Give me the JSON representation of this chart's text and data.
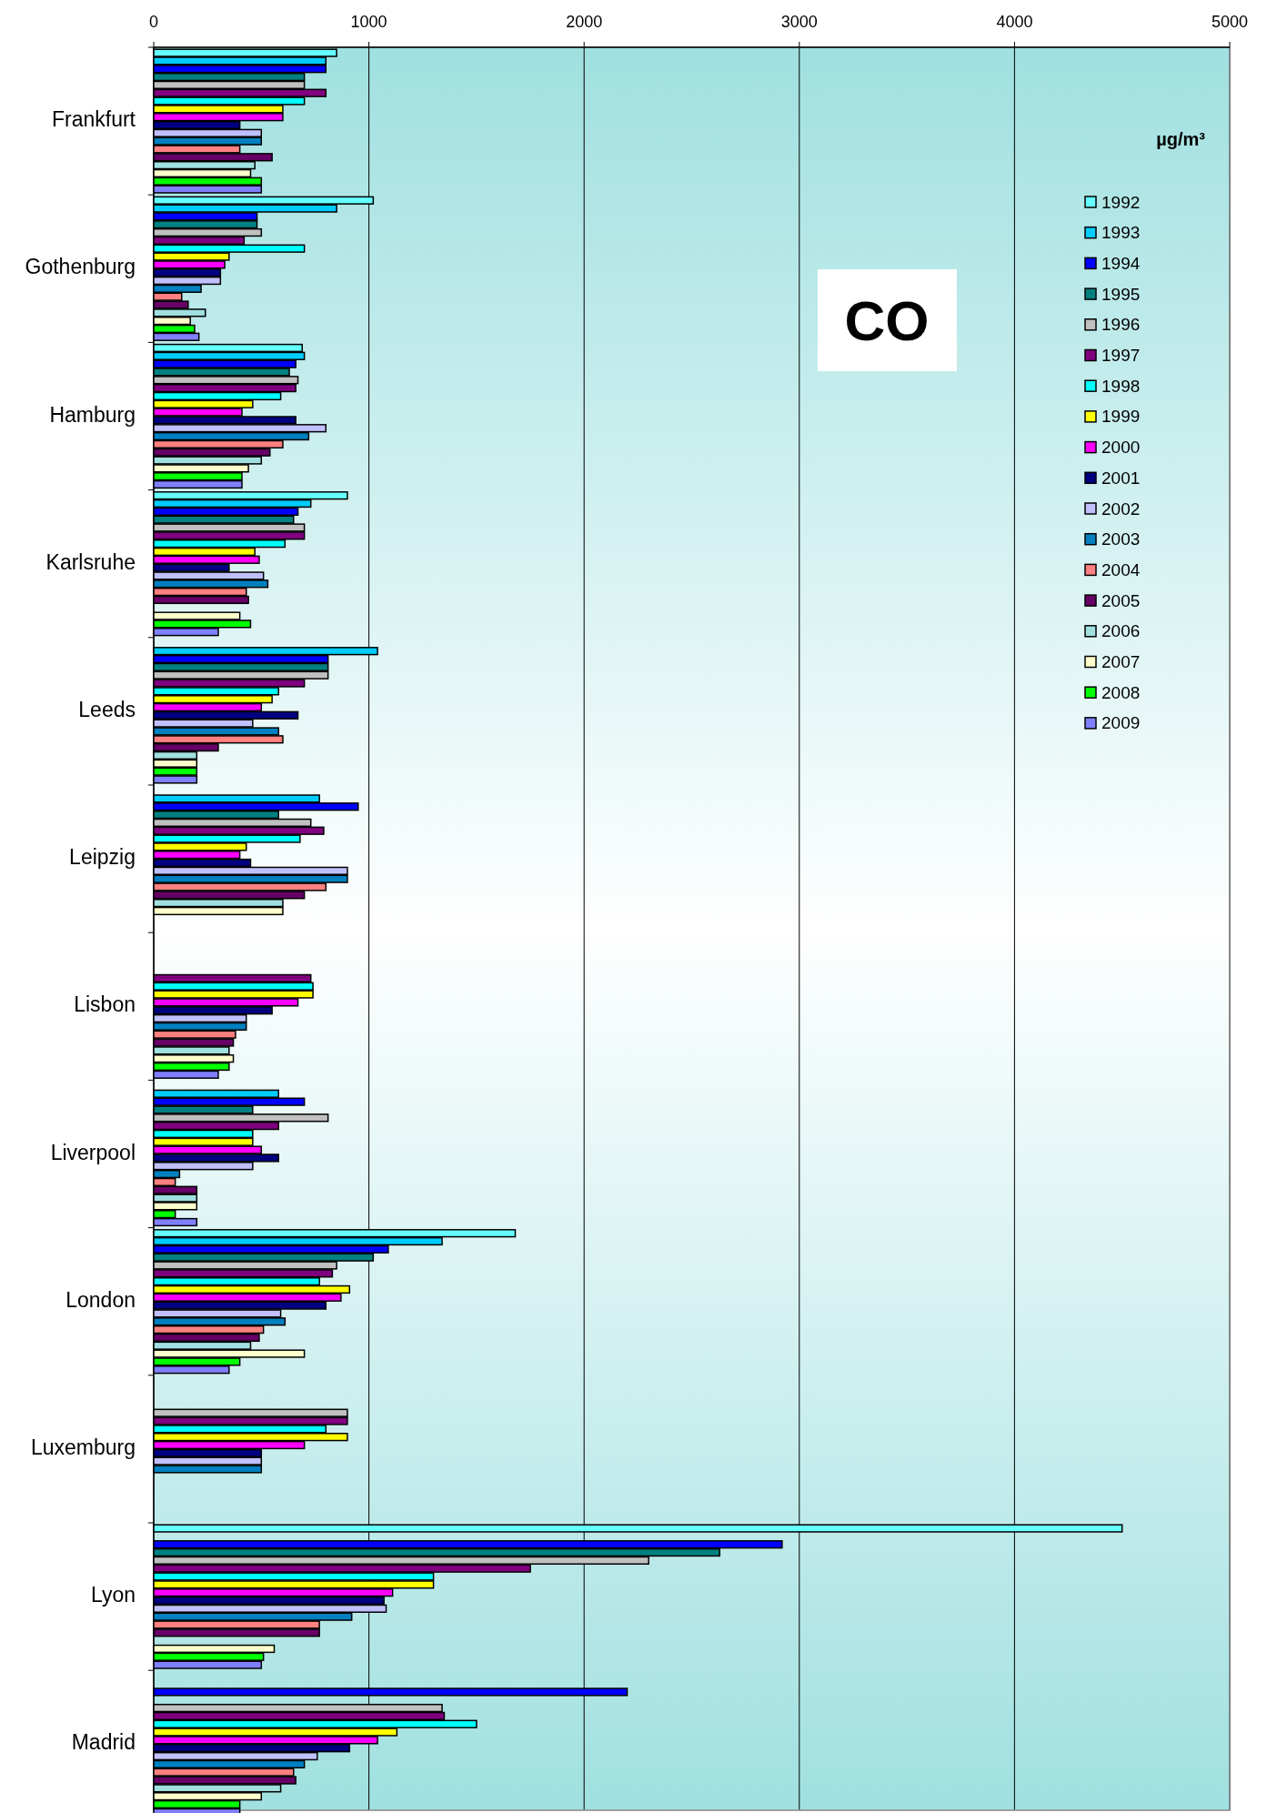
{
  "chart_data": {
    "type": "bar",
    "orientation": "horizontal",
    "title": "CO",
    "legend_title": "µg/m³",
    "categories": [
      "Frankfurt",
      "Gothenburg",
      "Hamburg",
      "Karlsruhe",
      "Leeds",
      "Leipzig",
      "Lisbon",
      "Liverpool",
      "London",
      "Luxemburg",
      "Lyon",
      "Madrid"
    ],
    "xlim": [
      0,
      5000
    ],
    "xticks": [
      0,
      1000,
      2000,
      3000,
      4000,
      5000
    ],
    "grid": "x",
    "legend": "top right",
    "series": [
      {
        "name": "1992",
        "color": "#66ffff",
        "values": [
          850,
          1020,
          690,
          900,
          null,
          null,
          null,
          null,
          1680,
          null,
          4500,
          null
        ]
      },
      {
        "name": "1993",
        "color": "#00ccff",
        "values": [
          800,
          850,
          700,
          730,
          1040,
          770,
          null,
          580,
          1340,
          null,
          null,
          null
        ]
      },
      {
        "name": "1994",
        "color": "#0000ff",
        "values": [
          800,
          480,
          660,
          670,
          810,
          950,
          null,
          700,
          1090,
          null,
          2920,
          2200
        ]
      },
      {
        "name": "1995",
        "color": "#008080",
        "values": [
          700,
          480,
          630,
          650,
          810,
          580,
          null,
          460,
          1020,
          null,
          2630,
          null
        ]
      },
      {
        "name": "1996",
        "color": "#c0c0c0",
        "values": [
          700,
          500,
          670,
          700,
          810,
          730,
          null,
          810,
          850,
          900,
          2300,
          1340
        ]
      },
      {
        "name": "1997",
        "color": "#800080",
        "values": [
          800,
          420,
          660,
          700,
          700,
          790,
          730,
          580,
          830,
          900,
          1750,
          1350
        ]
      },
      {
        "name": "1998",
        "color": "#00ffff",
        "values": [
          700,
          700,
          590,
          610,
          580,
          680,
          740,
          460,
          770,
          800,
          1300,
          1500
        ]
      },
      {
        "name": "1999",
        "color": "#ffff00",
        "values": [
          600,
          350,
          460,
          470,
          550,
          430,
          740,
          460,
          910,
          900,
          1300,
          1130
        ]
      },
      {
        "name": "2000",
        "color": "#ff00ff",
        "values": [
          600,
          330,
          410,
          490,
          500,
          400,
          670,
          500,
          870,
          700,
          1110,
          1040
        ]
      },
      {
        "name": "2001",
        "color": "#000080",
        "values": [
          400,
          310,
          660,
          350,
          670,
          450,
          550,
          580,
          800,
          500,
          1070,
          910
        ]
      },
      {
        "name": "2002",
        "color": "#c0c0ff",
        "values": [
          500,
          310,
          800,
          510,
          460,
          900,
          430,
          460,
          590,
          500,
          1080,
          760
        ]
      },
      {
        "name": "2003",
        "color": "#0080c0",
        "values": [
          500,
          220,
          720,
          530,
          580,
          900,
          430,
          120,
          610,
          500,
          920,
          700
        ]
      },
      {
        "name": "2004",
        "color": "#ff8080",
        "values": [
          400,
          130,
          600,
          430,
          600,
          800,
          380,
          100,
          510,
          null,
          770,
          650
        ]
      },
      {
        "name": "2005",
        "color": "#660066",
        "values": [
          550,
          160,
          540,
          440,
          300,
          700,
          370,
          200,
          490,
          null,
          770,
          660
        ]
      },
      {
        "name": "2006",
        "color": "#a0e0e0",
        "values": [
          470,
          240,
          500,
          null,
          200,
          600,
          350,
          200,
          450,
          null,
          null,
          590
        ]
      },
      {
        "name": "2007",
        "color": "#ffffcc",
        "values": [
          450,
          170,
          440,
          400,
          200,
          600,
          370,
          200,
          700,
          null,
          560,
          500
        ]
      },
      {
        "name": "2008",
        "color": "#00ff00",
        "values": [
          500,
          190,
          410,
          450,
          200,
          null,
          350,
          100,
          400,
          null,
          510,
          400
        ]
      },
      {
        "name": "2009",
        "color": "#8080ff",
        "values": [
          500,
          210,
          410,
          300,
          200,
          null,
          300,
          200,
          350,
          null,
          500,
          400
        ]
      }
    ]
  }
}
